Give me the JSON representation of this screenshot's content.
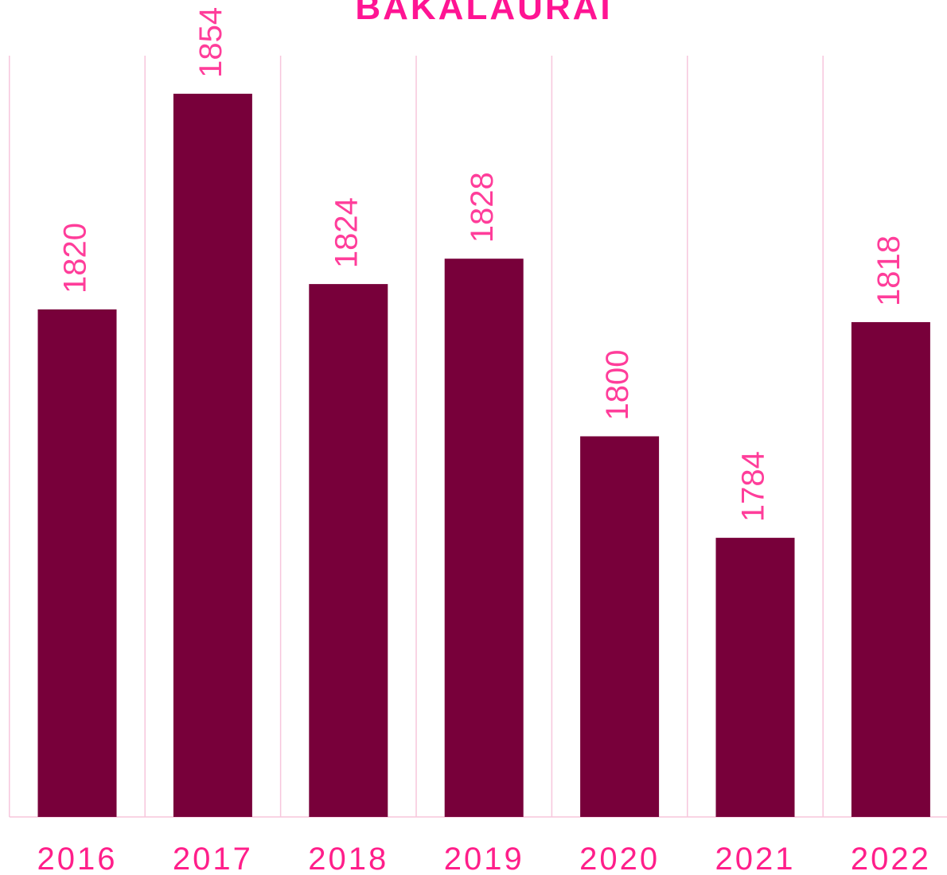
{
  "chart_data": {
    "type": "bar",
    "title": "BAKALAURAI",
    "categories": [
      "2016",
      "2017",
      "2018",
      "2019",
      "2020",
      "2021",
      "2022"
    ],
    "values": [
      1820,
      1854,
      1824,
      1828,
      1800,
      1784,
      1818
    ],
    "color": "#78003a",
    "ylim": [
      1740,
      1860
    ]
  }
}
